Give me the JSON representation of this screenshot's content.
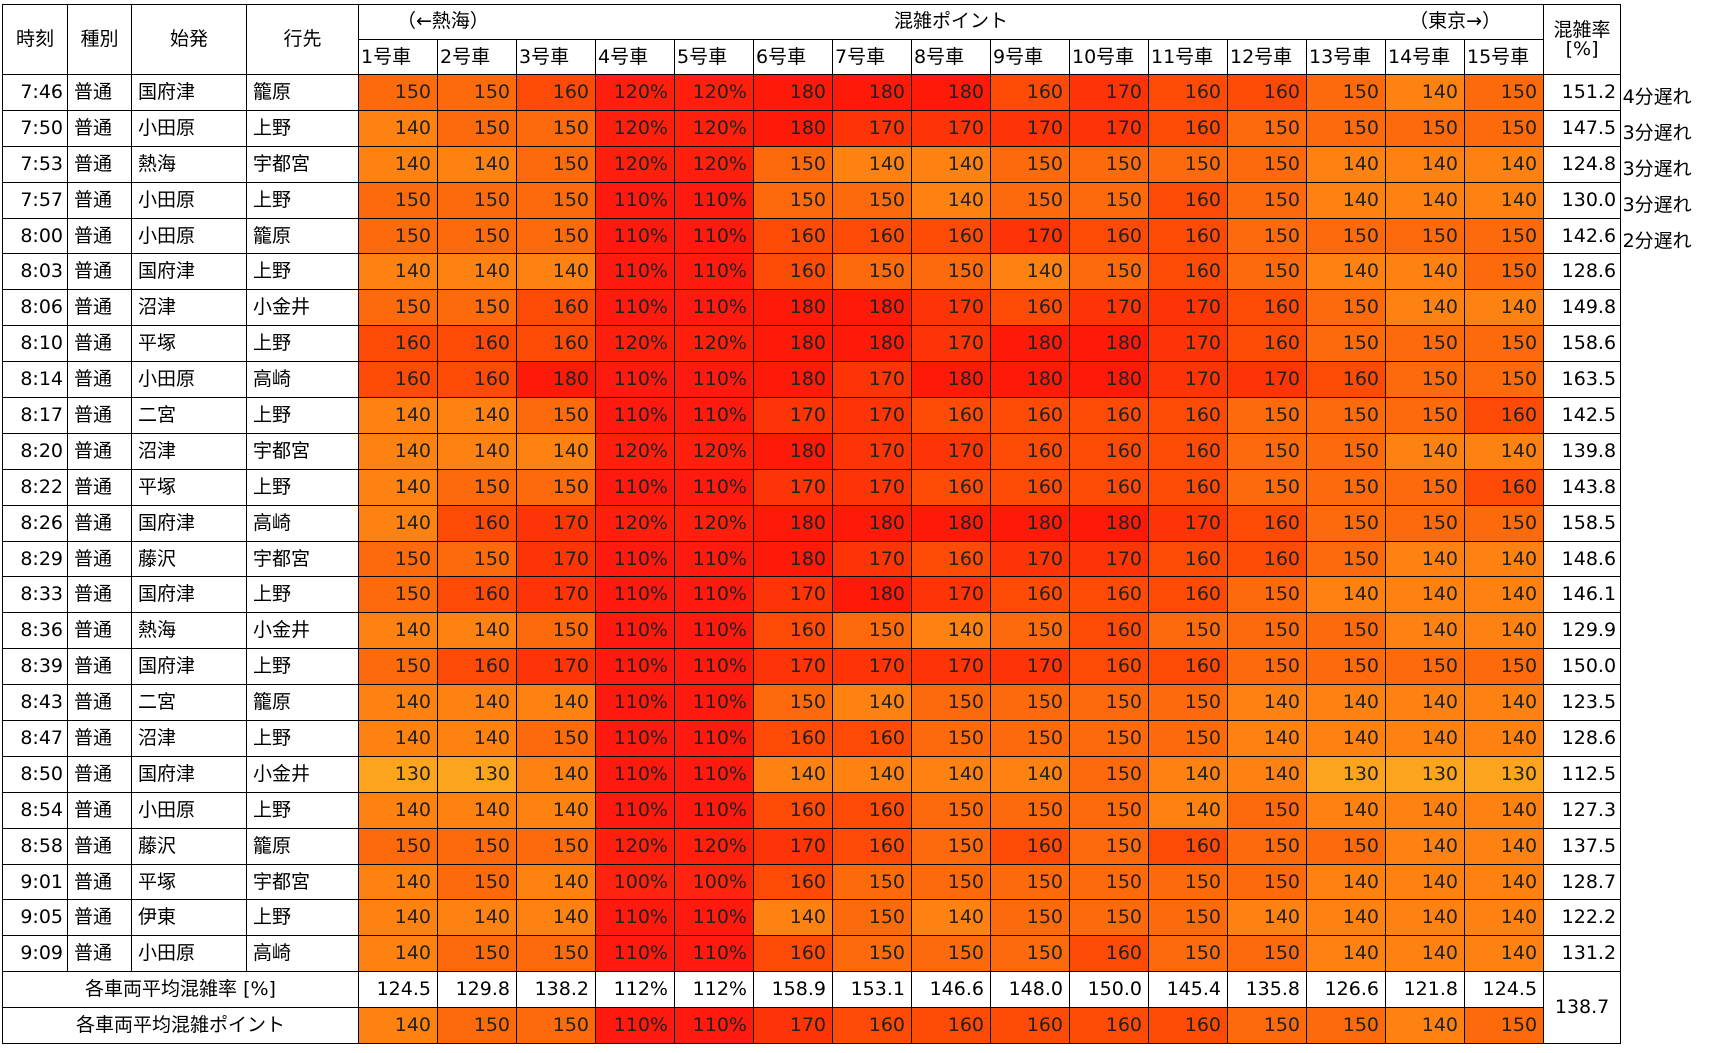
{
  "header": {
    "time": "時刻",
    "type": "種別",
    "origin": "始発",
    "dest": "行先",
    "direction_left": "（←熱海）",
    "group": "混雑ポイント",
    "direction_right": "（東京→）",
    "rate_line1": "混雑率",
    "rate_line2": "[%]"
  },
  "cars": [
    "1号車",
    "2号車",
    "3号車",
    "4号車",
    "5号車",
    "6号車",
    "7号車",
    "8号車",
    "9号車",
    "10号車",
    "11号車",
    "12号車",
    "13号車",
    "14号車",
    "15号車"
  ],
  "percent_cars": [
    3,
    4
  ],
  "chart_data": {
    "type": "heatmap",
    "x": [
      "1号車",
      "2号車",
      "3号車",
      "4号車",
      "5号車",
      "6号車",
      "7号車",
      "8号車",
      "9号車",
      "10号車",
      "11号車",
      "12号車",
      "13号車",
      "14号車",
      "15号車"
    ],
    "rows": [
      {
        "time": "7:46",
        "type": "普通",
        "origin": "国府津",
        "dest": "籠原",
        "values": [
          150,
          150,
          160,
          120,
          120,
          180,
          180,
          180,
          160,
          170,
          160,
          160,
          150,
          140,
          150
        ],
        "rate": "151.2",
        "note": "4分遅れ"
      },
      {
        "time": "7:50",
        "type": "普通",
        "origin": "小田原",
        "dest": "上野",
        "values": [
          140,
          150,
          150,
          120,
          120,
          180,
          170,
          170,
          170,
          170,
          160,
          150,
          150,
          150,
          150
        ],
        "rate": "147.5",
        "note": "3分遅れ"
      },
      {
        "time": "7:53",
        "type": "普通",
        "origin": "熱海",
        "dest": "宇都宮",
        "values": [
          140,
          140,
          150,
          120,
          120,
          150,
          140,
          140,
          150,
          150,
          150,
          150,
          140,
          140,
          140
        ],
        "rate": "124.8",
        "note": "3分遅れ"
      },
      {
        "time": "7:57",
        "type": "普通",
        "origin": "小田原",
        "dest": "上野",
        "values": [
          150,
          150,
          150,
          110,
          110,
          150,
          150,
          140,
          150,
          150,
          160,
          150,
          140,
          140,
          140
        ],
        "rate": "130.0",
        "note": "3分遅れ"
      },
      {
        "time": "8:00",
        "type": "普通",
        "origin": "小田原",
        "dest": "籠原",
        "values": [
          150,
          150,
          150,
          110,
          110,
          160,
          160,
          160,
          170,
          160,
          160,
          150,
          150,
          150,
          150
        ],
        "rate": "142.6",
        "note": "2分遅れ"
      },
      {
        "time": "8:03",
        "type": "普通",
        "origin": "国府津",
        "dest": "上野",
        "values": [
          140,
          140,
          140,
          110,
          110,
          160,
          150,
          150,
          140,
          150,
          160,
          150,
          140,
          140,
          150
        ],
        "rate": "128.6",
        "note": ""
      },
      {
        "time": "8:06",
        "type": "普通",
        "origin": "沼津",
        "dest": "小金井",
        "values": [
          150,
          150,
          160,
          110,
          110,
          180,
          180,
          170,
          160,
          170,
          170,
          160,
          150,
          140,
          140
        ],
        "rate": "149.8",
        "note": ""
      },
      {
        "time": "8:10",
        "type": "普通",
        "origin": "平塚",
        "dest": "上野",
        "values": [
          160,
          160,
          160,
          120,
          120,
          180,
          180,
          170,
          180,
          180,
          170,
          160,
          150,
          150,
          150
        ],
        "rate": "158.6",
        "note": ""
      },
      {
        "time": "8:14",
        "type": "普通",
        "origin": "小田原",
        "dest": "高崎",
        "values": [
          160,
          160,
          180,
          110,
          110,
          180,
          170,
          180,
          180,
          180,
          170,
          170,
          160,
          150,
          150
        ],
        "rate": "163.5",
        "note": ""
      },
      {
        "time": "8:17",
        "type": "普通",
        "origin": "二宮",
        "dest": "上野",
        "values": [
          140,
          140,
          150,
          110,
          110,
          170,
          170,
          160,
          160,
          160,
          160,
          150,
          150,
          150,
          160
        ],
        "rate": "142.5",
        "note": ""
      },
      {
        "time": "8:20",
        "type": "普通",
        "origin": "沼津",
        "dest": "宇都宮",
        "values": [
          140,
          140,
          140,
          120,
          120,
          180,
          170,
          170,
          160,
          160,
          160,
          150,
          150,
          140,
          140
        ],
        "rate": "139.8",
        "note": ""
      },
      {
        "time": "8:22",
        "type": "普通",
        "origin": "平塚",
        "dest": "上野",
        "values": [
          140,
          150,
          150,
          110,
          110,
          170,
          170,
          160,
          160,
          160,
          160,
          150,
          150,
          150,
          160
        ],
        "rate": "143.8",
        "note": ""
      },
      {
        "time": "8:26",
        "type": "普通",
        "origin": "国府津",
        "dest": "高崎",
        "values": [
          140,
          160,
          170,
          120,
          120,
          180,
          180,
          180,
          180,
          180,
          170,
          160,
          150,
          150,
          150
        ],
        "rate": "158.5",
        "note": ""
      },
      {
        "time": "8:29",
        "type": "普通",
        "origin": "藤沢",
        "dest": "宇都宮",
        "values": [
          150,
          150,
          170,
          110,
          110,
          180,
          170,
          160,
          170,
          170,
          160,
          160,
          150,
          140,
          140
        ],
        "rate": "148.6",
        "note": ""
      },
      {
        "time": "8:33",
        "type": "普通",
        "origin": "国府津",
        "dest": "上野",
        "values": [
          150,
          160,
          170,
          110,
          110,
          170,
          180,
          170,
          160,
          160,
          160,
          150,
          140,
          140,
          140
        ],
        "rate": "146.1",
        "note": ""
      },
      {
        "time": "8:36",
        "type": "普通",
        "origin": "熱海",
        "dest": "小金井",
        "values": [
          140,
          140,
          150,
          110,
          110,
          160,
          150,
          140,
          150,
          160,
          150,
          150,
          150,
          140,
          140
        ],
        "rate": "129.9",
        "note": ""
      },
      {
        "time": "8:39",
        "type": "普通",
        "origin": "国府津",
        "dest": "上野",
        "values": [
          150,
          160,
          170,
          110,
          110,
          170,
          170,
          170,
          170,
          160,
          160,
          150,
          150,
          150,
          150
        ],
        "rate": "150.0",
        "note": ""
      },
      {
        "time": "8:43",
        "type": "普通",
        "origin": "二宮",
        "dest": "籠原",
        "values": [
          140,
          140,
          140,
          110,
          110,
          150,
          140,
          150,
          150,
          150,
          150,
          140,
          140,
          140,
          140
        ],
        "rate": "123.5",
        "note": ""
      },
      {
        "time": "8:47",
        "type": "普通",
        "origin": "沼津",
        "dest": "上野",
        "values": [
          140,
          140,
          150,
          110,
          110,
          160,
          160,
          150,
          150,
          150,
          150,
          140,
          140,
          140,
          140
        ],
        "rate": "128.6",
        "note": ""
      },
      {
        "time": "8:50",
        "type": "普通",
        "origin": "国府津",
        "dest": "小金井",
        "values": [
          130,
          130,
          140,
          110,
          110,
          140,
          140,
          140,
          140,
          150,
          140,
          140,
          130,
          130,
          130
        ],
        "rate": "112.5",
        "note": ""
      },
      {
        "time": "8:54",
        "type": "普通",
        "origin": "小田原",
        "dest": "上野",
        "values": [
          140,
          140,
          140,
          110,
          110,
          160,
          160,
          150,
          150,
          150,
          140,
          150,
          140,
          140,
          140
        ],
        "rate": "127.3",
        "note": ""
      },
      {
        "time": "8:58",
        "type": "普通",
        "origin": "藤沢",
        "dest": "籠原",
        "values": [
          150,
          150,
          150,
          120,
          120,
          170,
          160,
          150,
          160,
          150,
          160,
          150,
          150,
          140,
          140
        ],
        "rate": "137.5",
        "note": ""
      },
      {
        "time": "9:01",
        "type": "普通",
        "origin": "平塚",
        "dest": "宇都宮",
        "values": [
          140,
          150,
          140,
          100,
          100,
          160,
          150,
          150,
          150,
          150,
          150,
          150,
          140,
          140,
          140
        ],
        "rate": "128.7",
        "note": ""
      },
      {
        "time": "9:05",
        "type": "普通",
        "origin": "伊東",
        "dest": "上野",
        "values": [
          140,
          140,
          140,
          110,
          110,
          140,
          150,
          140,
          150,
          150,
          150,
          140,
          140,
          140,
          140
        ],
        "rate": "122.2",
        "note": ""
      },
      {
        "time": "9:09",
        "type": "普通",
        "origin": "小田原",
        "dest": "高崎",
        "values": [
          140,
          150,
          150,
          110,
          110,
          160,
          150,
          150,
          150,
          160,
          150,
          150,
          140,
          140,
          140
        ],
        "rate": "131.2",
        "note": ""
      }
    ],
    "avg_rate_label": "各車両平均混雑率 [%]",
    "avg_rate": [
      "124.5",
      "129.8",
      "138.2",
      "112%",
      "112%",
      "158.9",
      "153.1",
      "146.6",
      "148.0",
      "150.0",
      "145.4",
      "135.8",
      "126.6",
      "121.8",
      "124.5"
    ],
    "avg_point_label": "各車両平均混雑ポイント",
    "avg_point": [
      140,
      150,
      150,
      110,
      110,
      170,
      160,
      160,
      160,
      160,
      160,
      150,
      150,
      140,
      150
    ],
    "overall_rate": "138.7"
  },
  "colors": {
    "c100": "#fe2410",
    "c110": "#fe1a0e",
    "c120": "#fe200c",
    "c130": "#fda41f",
    "c140": "#fd8211",
    "c150": "#fd6a0b",
    "c160": "#fd4a07",
    "c170": "#fd3405",
    "c180": "#fe1a08"
  }
}
